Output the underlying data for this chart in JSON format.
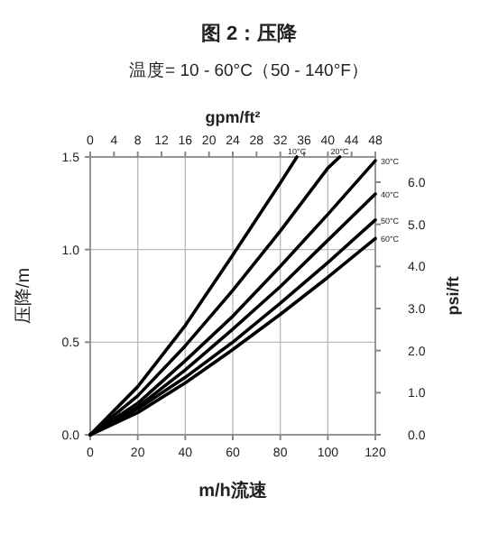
{
  "chart_data": {
    "type": "line",
    "title": "图 2：压降",
    "subtitle": "温度= 10 - 60°C（50 - 140°F）",
    "xlabel": "m/h流速",
    "ylabel": "压降/m",
    "y2label": "psi/ft",
    "x2label": "gpm/ft²",
    "xlim": [
      0,
      120
    ],
    "xticks": [
      0,
      20,
      40,
      60,
      80,
      100,
      120
    ],
    "ylim": [
      0,
      1.5
    ],
    "yticks": [
      {
        "value": 0,
        "label": "0.0"
      },
      {
        "value": 0.5,
        "label": "0.5"
      },
      {
        "value": 1.0,
        "label": "1.0"
      },
      {
        "value": 1.5,
        "label": "1.5"
      }
    ],
    "y2lim": [
      0,
      6.6
    ],
    "y2ticks": [
      {
        "value": 0,
        "label": "0.0"
      },
      {
        "value": 1,
        "label": "1.0"
      },
      {
        "value": 2,
        "label": "2.0"
      },
      {
        "value": 3,
        "label": "3.0"
      },
      {
        "value": 4,
        "label": "4.0"
      },
      {
        "value": 5,
        "label": "5.0"
      },
      {
        "value": 6,
        "label": "6.0"
      }
    ],
    "x2lim": [
      0,
      48
    ],
    "x2ticks": [
      0,
      4,
      8,
      12,
      16,
      20,
      24,
      28,
      32,
      36,
      40,
      44,
      48
    ],
    "grid": true,
    "series": [
      {
        "name": "10°C",
        "color": "#000000",
        "x": [
          0,
          20,
          40,
          60,
          80,
          87
        ],
        "values": [
          0,
          0.26,
          0.59,
          0.97,
          1.36,
          1.5
        ]
      },
      {
        "name": "20°C",
        "color": "#000000",
        "x": [
          0,
          20,
          40,
          60,
          80,
          100,
          105
        ],
        "values": [
          0,
          0.21,
          0.48,
          0.78,
          1.1,
          1.44,
          1.5
        ]
      },
      {
        "name": "30°C",
        "color": "#000000",
        "x": [
          0,
          20,
          40,
          60,
          80,
          100,
          120
        ],
        "values": [
          0,
          0.17,
          0.4,
          0.64,
          0.91,
          1.19,
          1.48
        ]
      },
      {
        "name": "40°C",
        "color": "#000000",
        "x": [
          0,
          20,
          40,
          60,
          80,
          100,
          120
        ],
        "values": [
          0,
          0.15,
          0.35,
          0.57,
          0.8,
          1.05,
          1.3
        ]
      },
      {
        "name": "50°C",
        "color": "#000000",
        "x": [
          0,
          20,
          40,
          60,
          80,
          100,
          120
        ],
        "values": [
          0,
          0.14,
          0.31,
          0.5,
          0.71,
          0.93,
          1.16
        ]
      },
      {
        "name": "60°C",
        "color": "#000000",
        "x": [
          0,
          20,
          40,
          60,
          80,
          100,
          120
        ],
        "values": [
          0,
          0.12,
          0.28,
          0.46,
          0.65,
          0.85,
          1.06
        ]
      }
    ]
  }
}
